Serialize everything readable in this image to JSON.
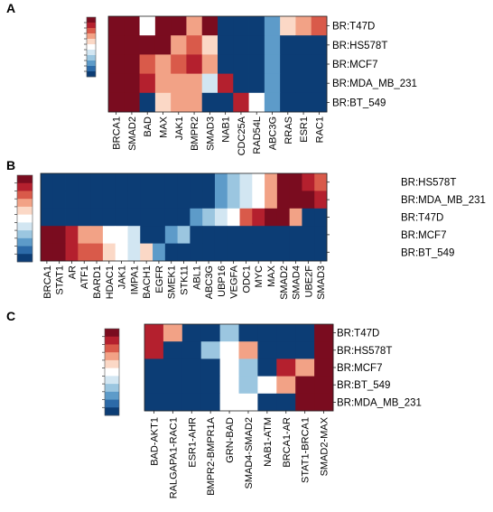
{
  "palette": [
    "#0c3d75",
    "#2c6aa8",
    "#5d9bc9",
    "#9bc6e0",
    "#d2e6f2",
    "#ffffff",
    "#fbd8c6",
    "#f2a286",
    "#d95a4a",
    "#b4202e",
    "#7a0c1f"
  ],
  "chart_data": [
    {
      "type": "heatmap",
      "panel": "A",
      "columns": [
        "BRCA1",
        "SMAD2",
        "BAD",
        "MAX",
        "JAK1",
        "BMPR2",
        "SMAD3",
        "NAB1",
        "CDC25A",
        "RAD54L",
        "ABC3G",
        "RRAS",
        "ESR1",
        "RAC1"
      ],
      "rows": [
        "BR:T47D",
        "BR:HS578T",
        "BR:MCF7",
        "BR:MDA_MB_231",
        "BR:BT_549"
      ],
      "values": [
        [
          10,
          10,
          5,
          10,
          10,
          7,
          10,
          0,
          0,
          0,
          2,
          6,
          7,
          8
        ],
        [
          10,
          10,
          10,
          10,
          7,
          8,
          6,
          0,
          0,
          0,
          2,
          0,
          0,
          0
        ],
        [
          10,
          10,
          8,
          7,
          8,
          9,
          7,
          0,
          0,
          0,
          2,
          0,
          0,
          0
        ],
        [
          10,
          10,
          9,
          7,
          7,
          7,
          4,
          9,
          0,
          0,
          2,
          0,
          0,
          0
        ],
        [
          10,
          10,
          0,
          6,
          7,
          7,
          0,
          0,
          9,
          5,
          2,
          0,
          0,
          0
        ]
      ]
    },
    {
      "type": "heatmap",
      "panel": "B",
      "columns": [
        "BRCA1",
        "STAT1",
        "AR",
        "ATF1",
        "BARD1",
        "HDAC1",
        "JAK1",
        "IMPA1",
        "BACH1",
        "EGFR",
        "SMEK1",
        "STK11",
        "ABL1",
        "ABC3G",
        "UBP16",
        "VEGFA",
        "ODC1",
        "MYC",
        "MAX",
        "SMAD2",
        "SMAD4",
        "UBE2F",
        "SMAD3"
      ],
      "rows": [
        "BR:HS578T",
        "BR:MDA_MB_231",
        "BR:T47D",
        "BR:MCF7",
        "BR:BT_549"
      ],
      "values": [
        [
          0,
          0,
          0,
          0,
          0,
          0,
          0,
          0,
          0,
          0,
          0,
          0,
          0,
          0,
          2,
          3,
          4,
          5,
          7,
          10,
          10,
          9,
          8
        ],
        [
          0,
          0,
          0,
          0,
          0,
          0,
          0,
          0,
          0,
          0,
          0,
          0,
          0,
          0,
          2,
          3,
          4,
          5,
          7,
          10,
          10,
          10,
          9
        ],
        [
          0,
          0,
          0,
          0,
          0,
          0,
          0,
          0,
          0,
          0,
          0,
          0,
          2,
          3,
          4,
          5,
          8,
          9,
          10,
          10,
          7,
          0,
          0
        ],
        [
          10,
          10,
          9,
          7,
          7,
          5,
          5,
          4,
          0,
          0,
          2,
          3,
          0,
          0,
          0,
          0,
          0,
          0,
          0,
          0,
          0,
          0,
          0
        ],
        [
          10,
          10,
          9,
          8,
          8,
          6,
          5,
          4,
          6,
          2,
          0,
          0,
          0,
          0,
          0,
          0,
          0,
          0,
          0,
          0,
          0,
          0,
          0
        ]
      ]
    },
    {
      "type": "heatmap",
      "panel": "C",
      "columns": [
        "BAD-AKT1",
        "RALGAPA1-RAC1",
        "ESR1-AHR",
        "BMPR2-BMPR1A",
        "GRN-BAD",
        "SMAD4-SMAD2",
        "NAB1-ATM",
        "BRCA1-AR",
        "STAT1-BRCA1",
        "SMAD2-MAX"
      ],
      "rows": [
        "BR:T47D",
        "BR:HS578T",
        "BR:MCF7",
        "BR:BT_549",
        "BR:MDA_MB_231"
      ],
      "values": [
        [
          9,
          7,
          0,
          0,
          3,
          0,
          0,
          0,
          0,
          10
        ],
        [
          9,
          0,
          0,
          3,
          5,
          7,
          0,
          0,
          0,
          10
        ],
        [
          0,
          0,
          0,
          0,
          5,
          3,
          0,
          9,
          7,
          10
        ],
        [
          0,
          0,
          0,
          0,
          5,
          3,
          5,
          7,
          10,
          10
        ],
        [
          0,
          0,
          0,
          0,
          5,
          5,
          0,
          0,
          10,
          10
        ]
      ]
    }
  ]
}
